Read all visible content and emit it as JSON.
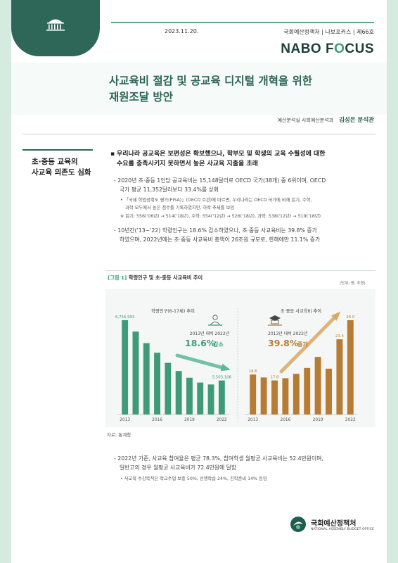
{
  "header": {
    "date": "2023.11.20.",
    "series": "국회예산정책처 | 나보포커스 | 제66호",
    "brand_part1": "NABO F",
    "brand_accent": "O",
    "brand_part2": "CUS"
  },
  "title": {
    "line1": "사교육비 절감 및 공교육 디지털 개혁을 위한",
    "line2": "재원조달 방안"
  },
  "author": {
    "dept": "예산분석실 사회예산분석과",
    "name": "김성은 분석관"
  },
  "sidebar": {
    "line1": "초·중등 교육의",
    "line2": "사교육 의존도 심화"
  },
  "main": {
    "bullet_line1": "우리나라 공교육은 보편성은 확보했으나, 학부모 및 학생의 교육 수월성에 대한",
    "bullet_line2": "수요를 충족시키지 못하면서 높은 사교육 지출을 초래",
    "p1_line1": "- 2020년 초·중등 1인당 공교육비는 15,148달러로 OECD 국가(38개) 중 6위이며, OECD",
    "p1_line2": "국가 평균 11,352달러보다 33.4%를 상회",
    "n1_line1": "• 「국제 학업성취도 평가(PISA)」(OECD 주관)에 따르면, 우리나라는 OECD 국가에 비해 읽기, 수학,",
    "n1_line2": "과학 모두에서 높은 점수를 기록하였지만, 하락 추세를 보임",
    "n2": "※ 읽기: 556('06년) → 514('18년), 수학: 554('12년) → 526('18년), 과학: 538('12년) → 519('18년)",
    "p2_line1": "- 10년간('13~'22) 학령인구는 18.6% 감소하였으나, 초·중등 사교육비는 39.8% 증가",
    "p2_line2": "하였으며, 2022년에는 초·중등 사교육비 총액이 26조원 규모로, 한해에만 11.1% 증가"
  },
  "figure": {
    "tag": "[그림 1]",
    "title": "학령인구 및 초·중등 사교육비 추이",
    "unit": "(단위: 명, 조원)",
    "source": "자료: 통계청"
  },
  "chart_data": [
    {
      "type": "bar",
      "title": "학령인구(6-17세) 추이",
      "categories": [
        "2013",
        "2014",
        "2015",
        "2016",
        "2017",
        "2018",
        "2019",
        "2020",
        "2021",
        "2022"
      ],
      "values": [
        6756993,
        6520000,
        6280000,
        6080000,
        5870000,
        5700000,
        5560000,
        5460000,
        5420000,
        5503108
      ],
      "x_tick_labels": [
        "2013",
        "2016",
        "2019",
        "2022"
      ],
      "data_labels": {
        "first": "6,756,993",
        "last": "5,503,108"
      },
      "annotation": {
        "caption": "2013년 대비 2022년",
        "value": "18.6%",
        "word": "감소"
      },
      "colors": {
        "bar": "#3f9a7a",
        "arrow": "#5db89a"
      }
    },
    {
      "type": "bar",
      "title": "초·중등 사교육비 추이",
      "categories": [
        "2013",
        "2014",
        "2015",
        "2016",
        "2017",
        "2018",
        "2019",
        "2020",
        "2021",
        "2022"
      ],
      "values": [
        18.6,
        18.2,
        17.8,
        18.1,
        18.7,
        19.5,
        21.0,
        19.4,
        23.4,
        26.0
      ],
      "x_tick_labels": [
        "2013",
        "2016",
        "2019",
        "2022"
      ],
      "data_labels": {
        "2013": "18.6",
        "2015": "17.8",
        "2021": "23.4",
        "2022": "26.0"
      },
      "annotation": {
        "caption": "2013년 대비 2022년",
        "value": "39.8%",
        "word": "증가"
      },
      "colors": {
        "bar": "#b77b33",
        "arrow": "#d9a864"
      }
    }
  ],
  "lower": {
    "p3_line1": "- 2022년 기준, 사교육 참여율은 평균 78.3%, 참여학생 월평균 사교육비는 52.4만원이며,",
    "p3_line2": "일반고의 경우 월평균 사교육비가 72.4만원에 달함",
    "n3": "• 사교육 수강목적은 학교수업 보충 50%, 선행학습 24%, 진학준비 14% 등임"
  },
  "footer": {
    "org_name": "국회예산정책처",
    "org_en": "NATIONAL ASSEMBLY BUDGET OFFICE"
  }
}
